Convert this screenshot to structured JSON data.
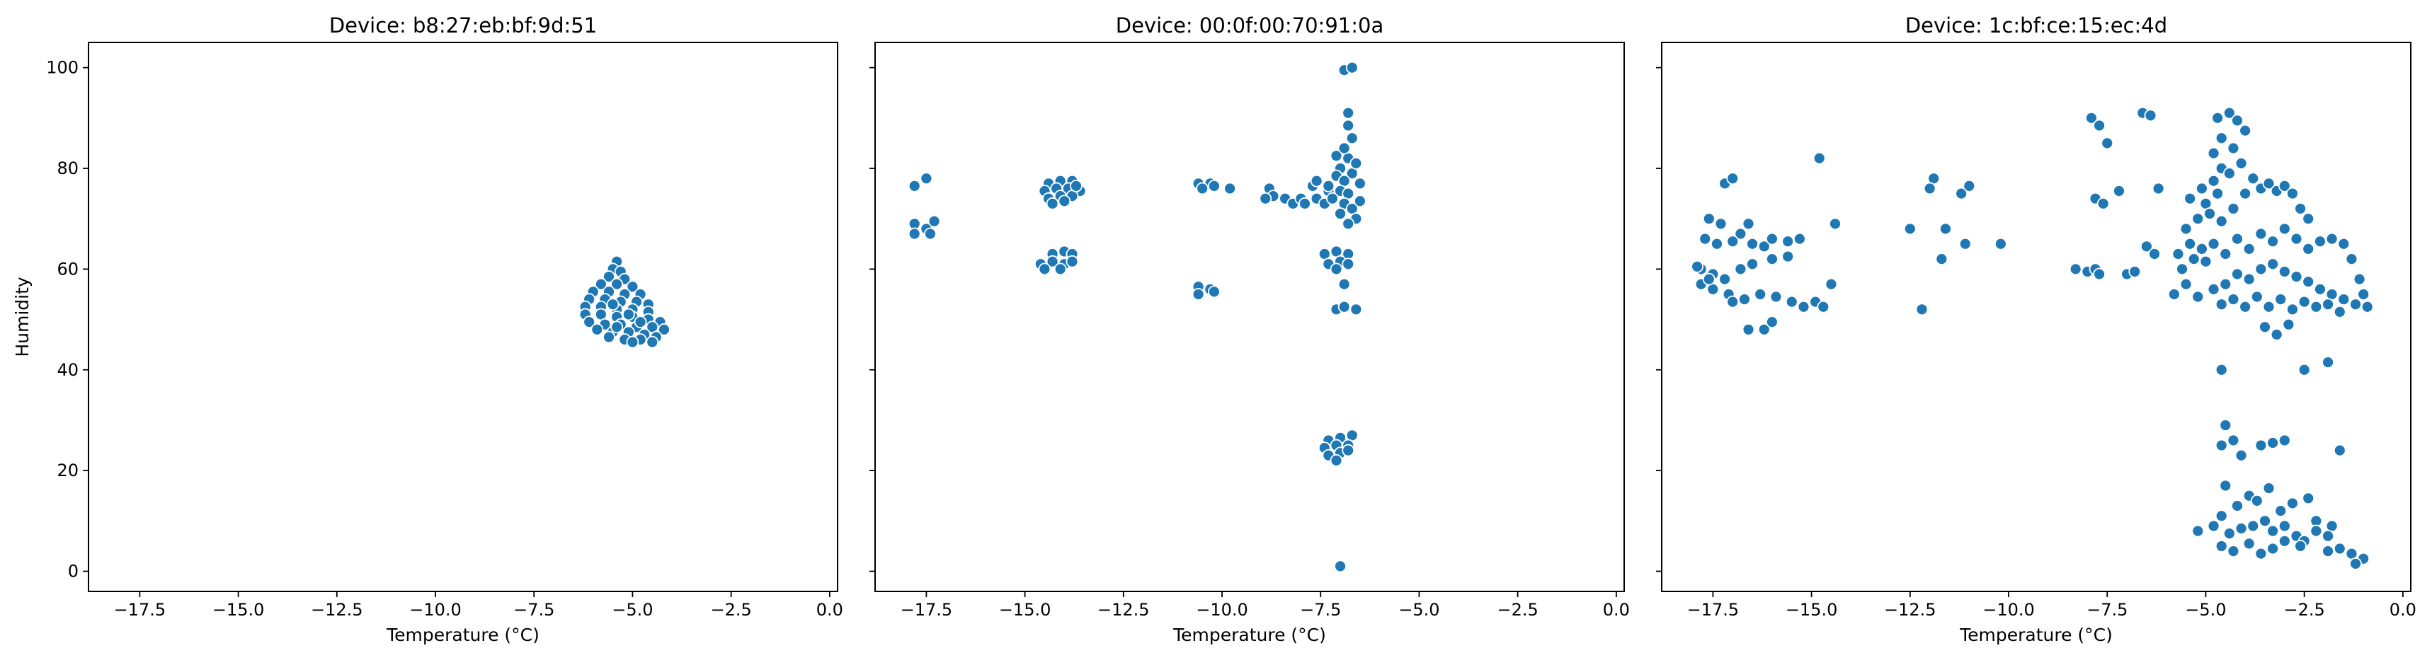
{
  "chart_data": [
    {
      "type": "scatter",
      "title": "Device: b8:27:eb:bf:9d:51",
      "xlabel": "Temperature (°C)",
      "ylabel": "Humidity",
      "xlim": [
        -18.8,
        0.2
      ],
      "ylim": [
        -4,
        105
      ],
      "xticks": [
        -17.5,
        -15.0,
        -12.5,
        -10.0,
        -7.5,
        -5.0,
        -2.5,
        0.0
      ],
      "xtick_labels": [
        "−17.5",
        "−15.0",
        "−12.5",
        "−10.0",
        "−7.5",
        "−5.0",
        "−2.5",
        "0.0"
      ],
      "yticks": [
        0,
        20,
        40,
        60,
        80,
        100
      ],
      "ytick_labels": [
        "0",
        "20",
        "40",
        "60",
        "80",
        "100"
      ],
      "color": "#1f77b4",
      "points": [
        [
          -5.4,
          61.5
        ],
        [
          -5.5,
          60.0
        ],
        [
          -5.3,
          59.5
        ],
        [
          -5.6,
          58.5
        ],
        [
          -5.2,
          58.0
        ],
        [
          -5.8,
          57.0
        ],
        [
          -5.4,
          57.0
        ],
        [
          -5.0,
          56.5
        ],
        [
          -6.0,
          55.5
        ],
        [
          -5.6,
          55.5
        ],
        [
          -5.2,
          55.0
        ],
        [
          -4.8,
          55.0
        ],
        [
          -6.1,
          54.0
        ],
        [
          -5.7,
          54.0
        ],
        [
          -5.3,
          53.5
        ],
        [
          -4.9,
          53.5
        ],
        [
          -4.6,
          53.0
        ],
        [
          -6.2,
          52.5
        ],
        [
          -5.8,
          52.5
        ],
        [
          -5.4,
          52.0
        ],
        [
          -5.0,
          52.0
        ],
        [
          -4.6,
          51.5
        ],
        [
          -6.2,
          51.0
        ],
        [
          -5.8,
          51.0
        ],
        [
          -5.4,
          50.5
        ],
        [
          -5.0,
          50.5
        ],
        [
          -4.6,
          50.0
        ],
        [
          -4.3,
          49.5
        ],
        [
          -6.1,
          49.5
        ],
        [
          -5.7,
          49.0
        ],
        [
          -5.3,
          49.0
        ],
        [
          -4.9,
          48.5
        ],
        [
          -4.5,
          48.5
        ],
        [
          -4.2,
          48.0
        ],
        [
          -5.9,
          48.0
        ],
        [
          -5.5,
          47.5
        ],
        [
          -5.1,
          47.5
        ],
        [
          -4.7,
          47.0
        ],
        [
          -4.4,
          46.5
        ],
        [
          -5.6,
          46.5
        ],
        [
          -5.2,
          46.0
        ],
        [
          -4.8,
          46.0
        ],
        [
          -4.5,
          45.5
        ],
        [
          -5.0,
          45.5
        ],
        [
          -5.4,
          48.5
        ],
        [
          -5.1,
          51.0
        ],
        [
          -4.8,
          49.5
        ],
        [
          -5.5,
          53.0
        ]
      ]
    },
    {
      "type": "scatter",
      "title": "Device: 00:0f:00:70:91:0a",
      "xlabel": "Temperature (°C)",
      "ylabel": "",
      "xlim": [
        -18.8,
        0.2
      ],
      "ylim": [
        -4,
        105
      ],
      "xticks": [
        -17.5,
        -15.0,
        -12.5,
        -10.0,
        -7.5,
        -5.0,
        -2.5,
        0.0
      ],
      "xtick_labels": [
        "−17.5",
        "−15.0",
        "−12.5",
        "−10.0",
        "−7.5",
        "−5.0",
        "−2.5",
        "0.0"
      ],
      "yticks": [
        0,
        20,
        40,
        60,
        80,
        100
      ],
      "color": "#1f77b4",
      "points": [
        [
          -17.8,
          76.5
        ],
        [
          -17.5,
          78.0
        ],
        [
          -17.8,
          69.0
        ],
        [
          -17.5,
          68.0
        ],
        [
          -17.3,
          69.5
        ],
        [
          -17.8,
          67.0
        ],
        [
          -17.4,
          67.0
        ],
        [
          -14.4,
          77.0
        ],
        [
          -14.1,
          77.5
        ],
        [
          -13.8,
          77.5
        ],
        [
          -14.5,
          75.5
        ],
        [
          -14.2,
          76.0
        ],
        [
          -13.9,
          76.0
        ],
        [
          -13.6,
          75.5
        ],
        [
          -14.4,
          74.0
        ],
        [
          -14.1,
          74.5
        ],
        [
          -13.8,
          74.5
        ],
        [
          -14.3,
          73.0
        ],
        [
          -14.0,
          73.5
        ],
        [
          -13.7,
          76.5
        ],
        [
          -14.3,
          63.0
        ],
        [
          -14.0,
          63.5
        ],
        [
          -13.8,
          63.0
        ],
        [
          -14.6,
          61.0
        ],
        [
          -14.3,
          61.5
        ],
        [
          -14.0,
          61.0
        ],
        [
          -13.8,
          61.5
        ],
        [
          -14.5,
          60.0
        ],
        [
          -14.1,
          60.0
        ],
        [
          -10.6,
          77.0
        ],
        [
          -10.3,
          77.0
        ],
        [
          -10.5,
          76.0
        ],
        [
          -10.2,
          76.5
        ],
        [
          -9.8,
          76.0
        ],
        [
          -10.6,
          56.5
        ],
        [
          -10.3,
          56.0
        ],
        [
          -10.6,
          55.0
        ],
        [
          -10.2,
          55.5
        ],
        [
          -8.8,
          76.0
        ],
        [
          -8.7,
          74.5
        ],
        [
          -8.4,
          74.0
        ],
        [
          -8.2,
          73.0
        ],
        [
          -8.9,
          74.0
        ],
        [
          -8.0,
          74.0
        ],
        [
          -7.9,
          73.0
        ],
        [
          -7.6,
          74.0
        ],
        [
          -7.4,
          73.0
        ],
        [
          -7.7,
          76.5
        ],
        [
          -7.3,
          75.5
        ],
        [
          -7.6,
          77.5
        ],
        [
          -7.1,
          82.5
        ],
        [
          -6.8,
          82.0
        ],
        [
          -7.0,
          80.0
        ],
        [
          -6.7,
          79.0
        ],
        [
          -7.1,
          78.5
        ],
        [
          -6.9,
          77.5
        ],
        [
          -7.3,
          76.5
        ],
        [
          -7.0,
          75.5
        ],
        [
          -6.8,
          75.0
        ],
        [
          -7.2,
          74.0
        ],
        [
          -6.9,
          73.0
        ],
        [
          -6.7,
          72.0
        ],
        [
          -7.0,
          71.0
        ],
        [
          -6.6,
          70.0
        ],
        [
          -6.8,
          69.0
        ],
        [
          -6.5,
          73.5
        ],
        [
          -6.5,
          77.0
        ],
        [
          -6.6,
          81.0
        ],
        [
          -6.8,
          91.0
        ],
        [
          -6.8,
          88.5
        ],
        [
          -6.7,
          86.0
        ],
        [
          -6.9,
          84.0
        ],
        [
          -6.9,
          99.5
        ],
        [
          -6.7,
          100.0
        ],
        [
          -7.4,
          63.0
        ],
        [
          -7.1,
          63.5
        ],
        [
          -6.8,
          63.0
        ],
        [
          -7.3,
          61.0
        ],
        [
          -7.0,
          61.5
        ],
        [
          -6.8,
          61.0
        ],
        [
          -7.1,
          60.0
        ],
        [
          -6.9,
          57.0
        ],
        [
          -7.1,
          52.0
        ],
        [
          -6.9,
          52.5
        ],
        [
          -6.6,
          52.0
        ],
        [
          -7.3,
          26.0
        ],
        [
          -7.0,
          26.5
        ],
        [
          -6.7,
          27.0
        ],
        [
          -7.4,
          24.5
        ],
        [
          -7.1,
          25.0
        ],
        [
          -6.8,
          25.0
        ],
        [
          -7.3,
          23.0
        ],
        [
          -7.0,
          23.5
        ],
        [
          -6.8,
          24.0
        ],
        [
          -7.1,
          22.0
        ],
        [
          -7.0,
          1.0
        ]
      ]
    },
    {
      "type": "scatter",
      "title": "Device: 1c:bf:ce:15:ec:4d",
      "xlabel": "Temperature (°C)",
      "ylabel": "",
      "xlim": [
        -18.8,
        0.2
      ],
      "ylim": [
        -4,
        105
      ],
      "xticks": [
        -17.5,
        -15.0,
        -12.5,
        -10.0,
        -7.5,
        -5.0,
        -2.5,
        0.0
      ],
      "xtick_labels": [
        "−17.5",
        "−15.0",
        "−12.5",
        "−10.0",
        "−7.5",
        "−5.0",
        "−2.5",
        "0.0"
      ],
      "yticks": [
        0,
        20,
        40,
        60,
        80,
        100
      ],
      "color": "#1f77b4",
      "points": [
        [
          -17.2,
          77.0
        ],
        [
          -17.0,
          78.0
        ],
        [
          -16.8,
          67.0
        ],
        [
          -16.6,
          69.0
        ],
        [
          -17.6,
          70.0
        ],
        [
          -17.3,
          69.0
        ],
        [
          -17.7,
          66.0
        ],
        [
          -17.4,
          65.0
        ],
        [
          -17.0,
          65.5
        ],
        [
          -16.5,
          65.0
        ],
        [
          -16.2,
          64.5
        ],
        [
          -16.0,
          66.0
        ],
        [
          -17.8,
          60.0
        ],
        [
          -17.5,
          59.0
        ],
        [
          -17.2,
          58.0
        ],
        [
          -16.8,
          60.0
        ],
        [
          -16.5,
          61.0
        ],
        [
          -16.0,
          62.0
        ],
        [
          -15.6,
          62.5
        ],
        [
          -17.8,
          57.0
        ],
        [
          -17.5,
          56.0
        ],
        [
          -17.1,
          55.0
        ],
        [
          -16.7,
          54.0
        ],
        [
          -16.3,
          55.0
        ],
        [
          -15.9,
          54.5
        ],
        [
          -15.5,
          53.5
        ],
        [
          -15.2,
          52.5
        ],
        [
          -14.9,
          53.5
        ],
        [
          -14.7,
          52.5
        ],
        [
          -17.0,
          53.5
        ],
        [
          -16.6,
          48.0
        ],
        [
          -16.2,
          48.0
        ],
        [
          -16.0,
          49.5
        ],
        [
          -15.6,
          65.5
        ],
        [
          -15.3,
          66.0
        ],
        [
          -14.8,
          82.0
        ],
        [
          -14.4,
          69.0
        ],
        [
          -14.5,
          57.0
        ],
        [
          -17.9,
          60.5
        ],
        [
          -17.6,
          58.0
        ],
        [
          -12.5,
          68.0
        ],
        [
          -12.2,
          52.0
        ],
        [
          -11.9,
          78.0
        ],
        [
          -12.0,
          76.0
        ],
        [
          -11.7,
          62.0
        ],
        [
          -11.6,
          68.0
        ],
        [
          -11.2,
          75.0
        ],
        [
          -11.0,
          76.5
        ],
        [
          -11.1,
          65.0
        ],
        [
          -10.2,
          65.0
        ],
        [
          -8.3,
          60.0
        ],
        [
          -8.0,
          59.5
        ],
        [
          -7.8,
          60.0
        ],
        [
          -7.7,
          59.0
        ],
        [
          -7.9,
          90.0
        ],
        [
          -7.7,
          88.5
        ],
        [
          -7.5,
          85.0
        ],
        [
          -7.8,
          74.0
        ],
        [
          -7.6,
          73.0
        ],
        [
          -7.2,
          75.5
        ],
        [
          -7.0,
          59.0
        ],
        [
          -6.8,
          59.5
        ],
        [
          -6.5,
          64.5
        ],
        [
          -6.3,
          63.0
        ],
        [
          -6.6,
          91.0
        ],
        [
          -6.4,
          90.5
        ],
        [
          -6.2,
          76.0
        ],
        [
          -5.8,
          55.0
        ],
        [
          -5.5,
          57.0
        ],
        [
          -5.2,
          54.5
        ],
        [
          -5.6,
          60.0
        ],
        [
          -5.3,
          62.0
        ],
        [
          -5.0,
          61.5
        ],
        [
          -5.7,
          63.0
        ],
        [
          -5.4,
          65.0
        ],
        [
          -5.1,
          64.0
        ],
        [
          -5.5,
          68.0
        ],
        [
          -5.2,
          70.0
        ],
        [
          -5.0,
          73.0
        ],
        [
          -5.4,
          74.0
        ],
        [
          -5.1,
          76.0
        ],
        [
          -4.8,
          77.5
        ],
        [
          -4.6,
          80.0
        ],
        [
          -4.8,
          83.0
        ],
        [
          -4.6,
          86.0
        ],
        [
          -4.7,
          90.0
        ],
        [
          -4.4,
          91.0
        ],
        [
          -4.2,
          89.5
        ],
        [
          -4.0,
          87.5
        ],
        [
          -4.3,
          84.0
        ],
        [
          -4.1,
          81.0
        ],
        [
          -4.4,
          79.0
        ],
        [
          -4.7,
          75.0
        ],
        [
          -4.9,
          71.0
        ],
        [
          -4.6,
          69.5
        ],
        [
          -4.3,
          72.0
        ],
        [
          -4.0,
          75.0
        ],
        [
          -3.8,
          78.0
        ],
        [
          -3.6,
          76.0
        ],
        [
          -3.4,
          77.0
        ],
        [
          -3.2,
          75.5
        ],
        [
          -3.0,
          76.5
        ],
        [
          -2.8,
          75.0
        ],
        [
          -2.6,
          72.0
        ],
        [
          -2.4,
          70.0
        ],
        [
          -4.8,
          65.0
        ],
        [
          -4.5,
          63.0
        ],
        [
          -4.2,
          66.0
        ],
        [
          -3.9,
          64.0
        ],
        [
          -3.6,
          67.0
        ],
        [
          -3.3,
          65.5
        ],
        [
          -3.0,
          68.0
        ],
        [
          -2.7,
          66.0
        ],
        [
          -2.4,
          64.0
        ],
        [
          -2.1,
          65.5
        ],
        [
          -1.8,
          66.0
        ],
        [
          -1.5,
          65.0
        ],
        [
          -1.3,
          62.0
        ],
        [
          -1.1,
          58.0
        ],
        [
          -1.0,
          55.0
        ],
        [
          -0.9,
          52.5
        ],
        [
          -1.2,
          53.0
        ],
        [
          -1.5,
          54.0
        ],
        [
          -1.8,
          55.0
        ],
        [
          -2.1,
          56.0
        ],
        [
          -2.4,
          57.5
        ],
        [
          -2.7,
          58.5
        ],
        [
          -3.0,
          59.5
        ],
        [
          -3.3,
          61.0
        ],
        [
          -3.6,
          60.0
        ],
        [
          -3.9,
          58.0
        ],
        [
          -4.2,
          59.0
        ],
        [
          -4.5,
          57.0
        ],
        [
          -4.8,
          56.0
        ],
        [
          -4.6,
          53.0
        ],
        [
          -4.3,
          54.0
        ],
        [
          -4.0,
          52.5
        ],
        [
          -3.7,
          54.5
        ],
        [
          -3.4,
          52.5
        ],
        [
          -3.1,
          54.0
        ],
        [
          -2.8,
          52.0
        ],
        [
          -2.5,
          53.5
        ],
        [
          -2.2,
          52.5
        ],
        [
          -1.9,
          53.0
        ],
        [
          -1.6,
          51.5
        ],
        [
          -3.5,
          48.5
        ],
        [
          -3.2,
          47.0
        ],
        [
          -2.9,
          49.0
        ],
        [
          -4.6,
          40.0
        ],
        [
          -2.5,
          40.0
        ],
        [
          -1.9,
          41.5
        ],
        [
          -4.5,
          29.0
        ],
        [
          -4.3,
          26.0
        ],
        [
          -4.1,
          23.0
        ],
        [
          -4.6,
          25.0
        ],
        [
          -3.6,
          25.0
        ],
        [
          -3.3,
          25.5
        ],
        [
          -3.0,
          26.0
        ],
        [
          -1.6,
          24.0
        ],
        [
          -4.5,
          17.0
        ],
        [
          -4.2,
          13.0
        ],
        [
          -3.9,
          15.0
        ],
        [
          -3.7,
          14.0
        ],
        [
          -3.4,
          16.5
        ],
        [
          -3.1,
          12.0
        ],
        [
          -2.8,
          13.5
        ],
        [
          -2.4,
          14.5
        ],
        [
          -2.2,
          10.0
        ],
        [
          -1.8,
          9.0
        ],
        [
          -5.2,
          8.0
        ],
        [
          -4.8,
          9.0
        ],
        [
          -4.6,
          11.0
        ],
        [
          -4.4,
          7.5
        ],
        [
          -4.1,
          8.5
        ],
        [
          -3.8,
          9.0
        ],
        [
          -3.5,
          10.0
        ],
        [
          -3.3,
          8.0
        ],
        [
          -3.0,
          9.0
        ],
        [
          -2.7,
          7.0
        ],
        [
          -2.5,
          6.0
        ],
        [
          -2.2,
          8.0
        ],
        [
          -1.9,
          7.0
        ],
        [
          -1.6,
          4.5
        ],
        [
          -1.3,
          3.5
        ],
        [
          -1.0,
          2.5
        ],
        [
          -1.2,
          1.5
        ],
        [
          -4.6,
          5.0
        ],
        [
          -4.3,
          4.0
        ],
        [
          -3.9,
          5.5
        ],
        [
          -3.6,
          3.5
        ],
        [
          -3.3,
          4.5
        ],
        [
          -3.0,
          6.0
        ],
        [
          -2.6,
          5.0
        ],
        [
          -1.9,
          4.0
        ]
      ]
    }
  ]
}
